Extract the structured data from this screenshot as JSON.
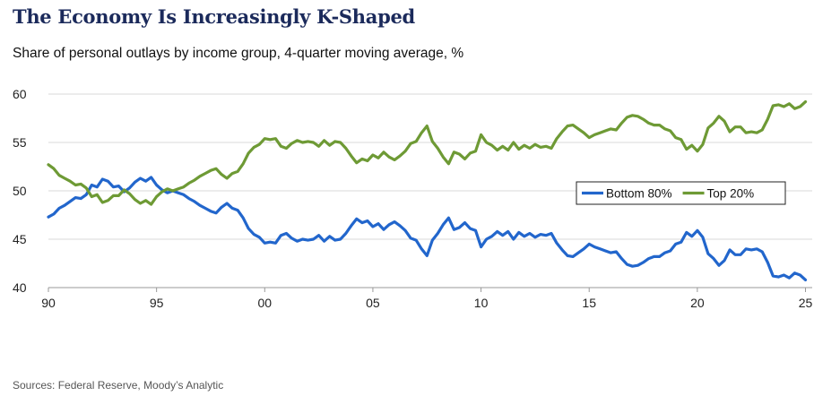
{
  "title": "The Economy Is Increasingly K-Shaped",
  "subtitle": "Share of personal outlays by income group, 4-quarter moving average, %",
  "source": "Sources: Federal Reserve, Moody’s Analytic",
  "colors": {
    "bottom": "#2266cc",
    "top": "#6e9a35",
    "grid": "#d9d9d9",
    "axis": "#999999"
  },
  "chart_data": {
    "type": "line",
    "title": "The Economy Is Increasingly K-Shaped",
    "xlabel": "",
    "ylabel": "",
    "xlim": [
      1990,
      2025.5
    ],
    "ylim": [
      40,
      60
    ],
    "yticks": [
      40,
      45,
      50,
      55,
      60
    ],
    "xticks": [
      {
        "value": 1990,
        "label": "90"
      },
      {
        "value": 1995,
        "label": "95"
      },
      {
        "value": 2000,
        "label": "00"
      },
      {
        "value": 2005,
        "label": "05"
      },
      {
        "value": 2010,
        "label": "10"
      },
      {
        "value": 2015,
        "label": "15"
      },
      {
        "value": 2020,
        "label": "20"
      },
      {
        "value": 2025,
        "label": "25"
      }
    ],
    "grid": "horizontal",
    "legend_position": "center-right",
    "series": [
      {
        "name": "Bottom 80%",
        "color": "#2266cc",
        "points": [
          [
            1990.0,
            47.3
          ],
          [
            1990.25,
            47.6
          ],
          [
            1990.5,
            48.2
          ],
          [
            1990.75,
            48.5
          ],
          [
            1991.0,
            48.9
          ],
          [
            1991.25,
            49.3
          ],
          [
            1991.5,
            49.2
          ],
          [
            1991.75,
            49.6
          ],
          [
            1992.0,
            50.6
          ],
          [
            1992.25,
            50.4
          ],
          [
            1992.5,
            51.2
          ],
          [
            1992.75,
            51.0
          ],
          [
            1993.0,
            50.4
          ],
          [
            1993.25,
            50.5
          ],
          [
            1993.5,
            49.9
          ],
          [
            1993.75,
            50.3
          ],
          [
            1994.0,
            50.9
          ],
          [
            1994.25,
            51.3
          ],
          [
            1994.5,
            51.0
          ],
          [
            1994.75,
            51.4
          ],
          [
            1995.0,
            50.6
          ],
          [
            1995.25,
            50.1
          ],
          [
            1995.5,
            49.8
          ],
          [
            1995.75,
            50.0
          ],
          [
            1996.0,
            49.8
          ],
          [
            1996.25,
            49.6
          ],
          [
            1996.5,
            49.2
          ],
          [
            1996.75,
            48.9
          ],
          [
            1997.0,
            48.5
          ],
          [
            1997.25,
            48.2
          ],
          [
            1997.5,
            47.9
          ],
          [
            1997.75,
            47.7
          ],
          [
            1998.0,
            48.3
          ],
          [
            1998.25,
            48.7
          ],
          [
            1998.5,
            48.2
          ],
          [
            1998.75,
            48.0
          ],
          [
            1999.0,
            47.2
          ],
          [
            1999.25,
            46.1
          ],
          [
            1999.5,
            45.5
          ],
          [
            1999.75,
            45.2
          ],
          [
            2000.0,
            44.6
          ],
          [
            2000.25,
            44.7
          ],
          [
            2000.5,
            44.6
          ],
          [
            2000.75,
            45.4
          ],
          [
            2001.0,
            45.6
          ],
          [
            2001.25,
            45.1
          ],
          [
            2001.5,
            44.8
          ],
          [
            2001.75,
            45.0
          ],
          [
            2002.0,
            44.9
          ],
          [
            2002.25,
            45.0
          ],
          [
            2002.5,
            45.4
          ],
          [
            2002.75,
            44.8
          ],
          [
            2003.0,
            45.3
          ],
          [
            2003.25,
            44.9
          ],
          [
            2003.5,
            45.0
          ],
          [
            2003.75,
            45.6
          ],
          [
            2004.0,
            46.4
          ],
          [
            2004.25,
            47.1
          ],
          [
            2004.5,
            46.7
          ],
          [
            2004.75,
            46.9
          ],
          [
            2005.0,
            46.3
          ],
          [
            2005.25,
            46.6
          ],
          [
            2005.5,
            46.0
          ],
          [
            2005.75,
            46.5
          ],
          [
            2006.0,
            46.8
          ],
          [
            2006.25,
            46.4
          ],
          [
            2006.5,
            45.9
          ],
          [
            2006.75,
            45.1
          ],
          [
            2007.0,
            44.9
          ],
          [
            2007.25,
            44.0
          ],
          [
            2007.5,
            43.3
          ],
          [
            2007.75,
            44.9
          ],
          [
            2008.0,
            45.6
          ],
          [
            2008.25,
            46.5
          ],
          [
            2008.5,
            47.2
          ],
          [
            2008.75,
            46.0
          ],
          [
            2009.0,
            46.2
          ],
          [
            2009.25,
            46.7
          ],
          [
            2009.5,
            46.1
          ],
          [
            2009.75,
            45.9
          ],
          [
            2010.0,
            44.2
          ],
          [
            2010.25,
            45.0
          ],
          [
            2010.5,
            45.3
          ],
          [
            2010.75,
            45.8
          ],
          [
            2011.0,
            45.4
          ],
          [
            2011.25,
            45.8
          ],
          [
            2011.5,
            45.0
          ],
          [
            2011.75,
            45.7
          ],
          [
            2012.0,
            45.3
          ],
          [
            2012.25,
            45.6
          ],
          [
            2012.5,
            45.2
          ],
          [
            2012.75,
            45.5
          ],
          [
            2013.0,
            45.4
          ],
          [
            2013.25,
            45.6
          ],
          [
            2013.5,
            44.6
          ],
          [
            2013.75,
            43.9
          ],
          [
            2014.0,
            43.3
          ],
          [
            2014.25,
            43.2
          ],
          [
            2014.5,
            43.6
          ],
          [
            2014.75,
            44.0
          ],
          [
            2015.0,
            44.5
          ],
          [
            2015.25,
            44.2
          ],
          [
            2015.5,
            44.0
          ],
          [
            2015.75,
            43.8
          ],
          [
            2016.0,
            43.6
          ],
          [
            2016.25,
            43.7
          ],
          [
            2016.5,
            43.0
          ],
          [
            2016.75,
            42.4
          ],
          [
            2017.0,
            42.2
          ],
          [
            2017.25,
            42.3
          ],
          [
            2017.5,
            42.6
          ],
          [
            2017.75,
            43.0
          ],
          [
            2018.0,
            43.2
          ],
          [
            2018.25,
            43.2
          ],
          [
            2018.5,
            43.6
          ],
          [
            2018.75,
            43.8
          ],
          [
            2019.0,
            44.5
          ],
          [
            2019.25,
            44.7
          ],
          [
            2019.5,
            45.7
          ],
          [
            2019.75,
            45.3
          ],
          [
            2020.0,
            45.9
          ],
          [
            2020.25,
            45.2
          ],
          [
            2020.5,
            43.5
          ],
          [
            2020.75,
            43.0
          ],
          [
            2021.0,
            42.3
          ],
          [
            2021.25,
            42.8
          ],
          [
            2021.5,
            43.9
          ],
          [
            2021.75,
            43.4
          ],
          [
            2022.0,
            43.4
          ],
          [
            2022.25,
            44.0
          ],
          [
            2022.5,
            43.9
          ],
          [
            2022.75,
            44.0
          ],
          [
            2023.0,
            43.7
          ],
          [
            2023.25,
            42.6
          ],
          [
            2023.5,
            41.2
          ],
          [
            2023.75,
            41.1
          ],
          [
            2024.0,
            41.3
          ],
          [
            2024.25,
            41.0
          ],
          [
            2024.5,
            41.5
          ],
          [
            2024.75,
            41.3
          ],
          [
            2025.0,
            40.8
          ]
        ]
      },
      {
        "name": "Top 20%",
        "color": "#6e9a35",
        "points": [
          [
            1990.0,
            52.7
          ],
          [
            1990.25,
            52.3
          ],
          [
            1990.5,
            51.6
          ],
          [
            1990.75,
            51.3
          ],
          [
            1991.0,
            51.0
          ],
          [
            1991.25,
            50.6
          ],
          [
            1991.5,
            50.7
          ],
          [
            1991.75,
            50.3
          ],
          [
            1992.0,
            49.4
          ],
          [
            1992.25,
            49.6
          ],
          [
            1992.5,
            48.8
          ],
          [
            1992.75,
            49.0
          ],
          [
            1993.0,
            49.5
          ],
          [
            1993.25,
            49.5
          ],
          [
            1993.5,
            50.1
          ],
          [
            1993.75,
            49.7
          ],
          [
            1994.0,
            49.1
          ],
          [
            1994.25,
            48.7
          ],
          [
            1994.5,
            49.0
          ],
          [
            1994.75,
            48.6
          ],
          [
            1995.0,
            49.4
          ],
          [
            1995.25,
            49.9
          ],
          [
            1995.5,
            50.2
          ],
          [
            1995.75,
            50.0
          ],
          [
            1996.0,
            50.2
          ],
          [
            1996.25,
            50.4
          ],
          [
            1996.5,
            50.8
          ],
          [
            1996.75,
            51.1
          ],
          [
            1997.0,
            51.5
          ],
          [
            1997.25,
            51.8
          ],
          [
            1997.5,
            52.1
          ],
          [
            1997.75,
            52.3
          ],
          [
            1998.0,
            51.7
          ],
          [
            1998.25,
            51.3
          ],
          [
            1998.5,
            51.8
          ],
          [
            1998.75,
            52.0
          ],
          [
            1999.0,
            52.8
          ],
          [
            1999.25,
            53.9
          ],
          [
            1999.5,
            54.5
          ],
          [
            1999.75,
            54.8
          ],
          [
            2000.0,
            55.4
          ],
          [
            2000.25,
            55.3
          ],
          [
            2000.5,
            55.4
          ],
          [
            2000.75,
            54.6
          ],
          [
            2001.0,
            54.4
          ],
          [
            2001.25,
            54.9
          ],
          [
            2001.5,
            55.2
          ],
          [
            2001.75,
            55.0
          ],
          [
            2002.0,
            55.1
          ],
          [
            2002.25,
            55.0
          ],
          [
            2002.5,
            54.6
          ],
          [
            2002.75,
            55.2
          ],
          [
            2003.0,
            54.7
          ],
          [
            2003.25,
            55.1
          ],
          [
            2003.5,
            55.0
          ],
          [
            2003.75,
            54.4
          ],
          [
            2004.0,
            53.6
          ],
          [
            2004.25,
            52.9
          ],
          [
            2004.5,
            53.3
          ],
          [
            2004.75,
            53.1
          ],
          [
            2005.0,
            53.7
          ],
          [
            2005.25,
            53.4
          ],
          [
            2005.5,
            54.0
          ],
          [
            2005.75,
            53.5
          ],
          [
            2006.0,
            53.2
          ],
          [
            2006.25,
            53.6
          ],
          [
            2006.5,
            54.1
          ],
          [
            2006.75,
            54.9
          ],
          [
            2007.0,
            55.1
          ],
          [
            2007.25,
            56.0
          ],
          [
            2007.5,
            56.7
          ],
          [
            2007.75,
            55.1
          ],
          [
            2008.0,
            54.4
          ],
          [
            2008.25,
            53.5
          ],
          [
            2008.5,
            52.8
          ],
          [
            2008.75,
            54.0
          ],
          [
            2009.0,
            53.8
          ],
          [
            2009.25,
            53.3
          ],
          [
            2009.5,
            53.9
          ],
          [
            2009.75,
            54.1
          ],
          [
            2010.0,
            55.8
          ],
          [
            2010.25,
            55.0
          ],
          [
            2010.5,
            54.7
          ],
          [
            2010.75,
            54.2
          ],
          [
            2011.0,
            54.6
          ],
          [
            2011.25,
            54.2
          ],
          [
            2011.5,
            55.0
          ],
          [
            2011.75,
            54.3
          ],
          [
            2012.0,
            54.7
          ],
          [
            2012.25,
            54.4
          ],
          [
            2012.5,
            54.8
          ],
          [
            2012.75,
            54.5
          ],
          [
            2013.0,
            54.6
          ],
          [
            2013.25,
            54.4
          ],
          [
            2013.5,
            55.4
          ],
          [
            2013.75,
            56.1
          ],
          [
            2014.0,
            56.7
          ],
          [
            2014.25,
            56.8
          ],
          [
            2014.5,
            56.4
          ],
          [
            2014.75,
            56.0
          ],
          [
            2015.0,
            55.5
          ],
          [
            2015.25,
            55.8
          ],
          [
            2015.5,
            56.0
          ],
          [
            2015.75,
            56.2
          ],
          [
            2016.0,
            56.4
          ],
          [
            2016.25,
            56.3
          ],
          [
            2016.5,
            57.0
          ],
          [
            2016.75,
            57.6
          ],
          [
            2017.0,
            57.8
          ],
          [
            2017.25,
            57.7
          ],
          [
            2017.5,
            57.4
          ],
          [
            2017.75,
            57.0
          ],
          [
            2018.0,
            56.8
          ],
          [
            2018.25,
            56.8
          ],
          [
            2018.5,
            56.4
          ],
          [
            2018.75,
            56.2
          ],
          [
            2019.0,
            55.5
          ],
          [
            2019.25,
            55.3
          ],
          [
            2019.5,
            54.3
          ],
          [
            2019.75,
            54.7
          ],
          [
            2020.0,
            54.1
          ],
          [
            2020.25,
            54.8
          ],
          [
            2020.5,
            56.5
          ],
          [
            2020.75,
            57.0
          ],
          [
            2021.0,
            57.7
          ],
          [
            2021.25,
            57.2
          ],
          [
            2021.5,
            56.1
          ],
          [
            2021.75,
            56.6
          ],
          [
            2022.0,
            56.6
          ],
          [
            2022.25,
            56.0
          ],
          [
            2022.5,
            56.1
          ],
          [
            2022.75,
            56.0
          ],
          [
            2023.0,
            56.3
          ],
          [
            2023.25,
            57.4
          ],
          [
            2023.5,
            58.8
          ],
          [
            2023.75,
            58.9
          ],
          [
            2024.0,
            58.7
          ],
          [
            2024.25,
            59.0
          ],
          [
            2024.5,
            58.5
          ],
          [
            2024.75,
            58.7
          ],
          [
            2025.0,
            59.2
          ]
        ]
      }
    ]
  }
}
